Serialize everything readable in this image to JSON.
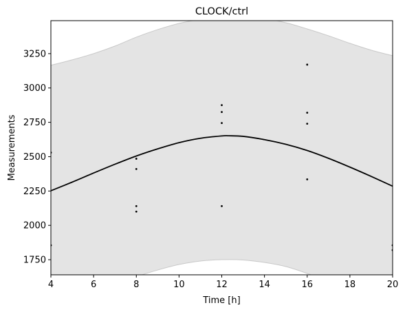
{
  "chart_data": {
    "type": "line",
    "title": "CLOCK/ctrl",
    "xlabel": "Time [h]",
    "ylabel": "Measurements",
    "xlim": [
      4,
      20
    ],
    "ylim": [
      1640,
      3490
    ],
    "x_ticks": [
      4,
      6,
      8,
      10,
      12,
      14,
      16,
      18,
      20
    ],
    "y_ticks": [
      1750,
      2000,
      2250,
      2500,
      2750,
      3000,
      3250
    ],
    "grid": false,
    "fit_line": {
      "color": "#000000",
      "x": [
        4,
        5,
        6,
        7,
        8,
        9,
        10,
        11,
        12,
        12.33,
        13,
        14,
        15,
        16,
        17,
        18,
        19,
        20
      ],
      "y": [
        2252,
        2315,
        2381,
        2445,
        2505,
        2557,
        2602,
        2634,
        2651,
        2652,
        2648,
        2624,
        2590,
        2545,
        2488,
        2424,
        2356,
        2285
      ]
    },
    "confidence_band": {
      "color": "#e4e4e4",
      "edge_color": "#c8c8c8",
      "x": [
        4,
        5,
        6,
        7,
        8,
        9,
        10,
        11,
        12,
        13,
        14,
        15,
        16,
        17,
        18,
        19,
        20
      ],
      "upper": [
        3165,
        3205,
        3250,
        3305,
        3370,
        3425,
        3470,
        3500,
        3520,
        3520,
        3505,
        3475,
        3430,
        3380,
        3325,
        3275,
        3235
      ],
      "lower": [
        1305,
        1390,
        1480,
        1555,
        1625,
        1675,
        1715,
        1740,
        1750,
        1748,
        1730,
        1700,
        1650,
        1590,
        1525,
        1460,
        1400
      ]
    },
    "points": {
      "color": "#000000",
      "x": [
        4,
        4,
        8,
        8,
        8,
        8,
        12,
        12,
        12,
        12,
        16,
        16,
        16,
        16,
        20,
        20
      ],
      "y": [
        2530,
        1855,
        2485,
        2410,
        2140,
        2100,
        2875,
        2825,
        2745,
        2140,
        3170,
        2820,
        2740,
        2335,
        1855,
        1820
      ]
    }
  }
}
